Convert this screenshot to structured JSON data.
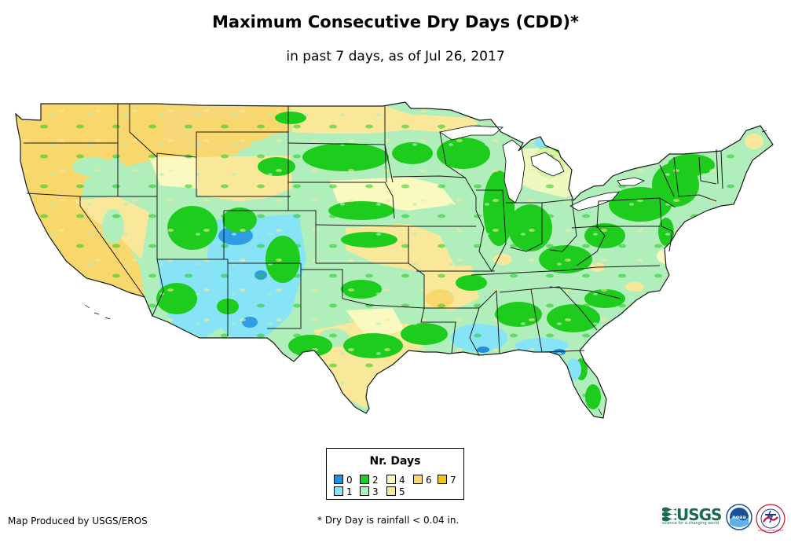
{
  "header": {
    "title": "Maximum Consecutive Dry Days (CDD)*",
    "subtitle": "in past 7 days, as of Jul 26, 2017"
  },
  "legend": {
    "title": "Nr. Days",
    "items": [
      {
        "label": "0",
        "color": "#1e90e0"
      },
      {
        "label": "1",
        "color": "#86e4f6"
      },
      {
        "label": "2",
        "color": "#1ecc1e"
      },
      {
        "label": "3",
        "color": "#b0eebc"
      },
      {
        "label": "4",
        "color": "#fafac0"
      },
      {
        "label": "5",
        "color": "#fae89a"
      },
      {
        "label": "6",
        "color": "#f8d86c"
      },
      {
        "label": "7",
        "color": "#f6c40a"
      }
    ]
  },
  "footer": {
    "credit": "Map Produced by USGS/EROS",
    "note": "* Dry Day is rainfall < 0.04 in."
  },
  "logos": {
    "usgs": "USGS",
    "usgs_tagline": "science for a changing world",
    "noaa": "noaa",
    "nws": "NATIONAL WEATHER SERVICE"
  }
}
